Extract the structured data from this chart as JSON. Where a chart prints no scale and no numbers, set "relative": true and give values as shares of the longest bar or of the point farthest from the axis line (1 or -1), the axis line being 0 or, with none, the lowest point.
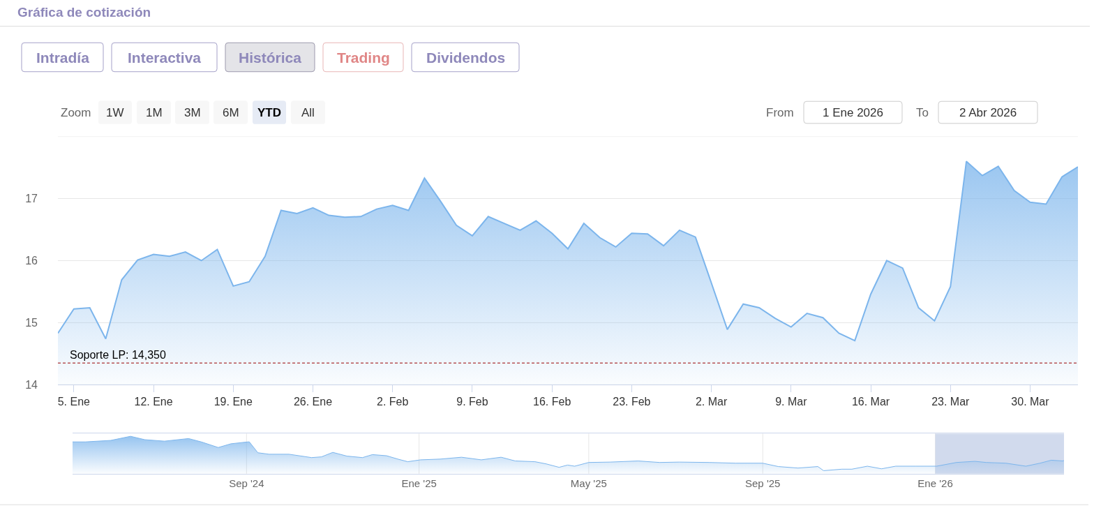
{
  "chart_data": [
    {
      "type": "area",
      "title": "Gráfica de cotización",
      "annotations": [
        "Intradía",
        "Interactiva",
        "Histórica",
        "Trading",
        "Dividendos",
        "Zoom",
        "1W",
        "1M",
        "3M",
        "6M",
        "YTD",
        "All",
        "From",
        "1 Ene 2026",
        "To",
        "2 Abr 2026"
      ],
      "categories": [
        null,
        "5. Ene",
        null,
        null,
        null,
        null,
        "12. Ene",
        null,
        null,
        null,
        null,
        "19. Ene",
        null,
        null,
        null,
        null,
        "26. Ene",
        null,
        null,
        null,
        null,
        "2. Feb",
        null,
        null,
        null,
        null,
        "9. Feb",
        null,
        null,
        null,
        null,
        "16. Feb",
        null,
        null,
        null,
        null,
        "23. Feb",
        null,
        null,
        null,
        null,
        "2. Mar",
        null,
        null,
        null,
        null,
        "9. Mar",
        null,
        null,
        null,
        null,
        "16. Mar",
        null,
        null,
        null,
        null,
        "23. Mar",
        null,
        null,
        null,
        null,
        "30. Mar",
        null,
        null,
        null
      ],
      "values": [
        14.83,
        15.22,
        15.24,
        14.74,
        15.69,
        16.01,
        16.1,
        16.07,
        16.14,
        16.0,
        16.18,
        15.59,
        15.66,
        16.07,
        16.81,
        16.76,
        16.85,
        16.73,
        16.7,
        16.71,
        16.83,
        16.89,
        16.81,
        17.33,
        16.96,
        16.57,
        16.4,
        16.71,
        16.6,
        16.49,
        16.64,
        16.44,
        16.19,
        16.6,
        16.37,
        16.22,
        16.44,
        16.43,
        16.24,
        16.49,
        16.38,
        15.64,
        14.89,
        15.3,
        15.24,
        15.07,
        14.93,
        15.15,
        15.08,
        14.83,
        14.71,
        15.46,
        16.0,
        15.88,
        15.24,
        15.03,
        15.58,
        17.6,
        17.37,
        17.52,
        17.13,
        16.94,
        16.91,
        17.35,
        17.51
      ],
      "color": "#7cb5ec",
      "ylim": [
        14,
        18
      ],
      "yticks": [
        14,
        15,
        16,
        17,
        {
          "value": 18,
          "label": null
        }
      ],
      "ref_lines": [
        {
          "axis": "y",
          "value": 14.35,
          "label": "Soporte LP: 14,350",
          "color": "#990000",
          "line_style": "dashed"
        }
      ],
      "grid": "y"
    },
    {
      "type": "area",
      "relative": true,
      "x": [
        "2024-05-01",
        "2024-05-10",
        "2024-05-28",
        "2024-06-11",
        "2024-06-21",
        "2024-07-05",
        "2024-07-22",
        "2024-07-31",
        "2024-08-12",
        "2024-08-21",
        "2024-09-02",
        "2024-09-03",
        "2024-09-09",
        "2024-09-17",
        "2024-10-01",
        "2024-10-17",
        "2024-10-24",
        "2024-11-01",
        "2024-11-11",
        "2024-11-22",
        "2024-11-29",
        "2024-12-09",
        "2024-12-17",
        "2024-12-24",
        "2025-01-02",
        "2025-01-16",
        "2025-01-31",
        "2025-02-14",
        "2025-02-28",
        "2025-03-10",
        "2025-03-24",
        "2025-04-01",
        "2025-04-10",
        "2025-04-16",
        "2025-04-21",
        "2025-05-01",
        "2025-05-16",
        "2025-06-05",
        "2025-06-20",
        "2025-07-04",
        "2025-07-25",
        "2025-08-13",
        "2025-09-01",
        "2025-09-12",
        "2025-09-26",
        "2025-10-10",
        "2025-10-14",
        "2025-10-27",
        "2025-11-03",
        "2025-11-14",
        "2025-11-24",
        "2025-12-04",
        "2025-12-18",
        "2026-01-02",
        "2026-01-16",
        "2026-01-29",
        "2026-02-06",
        "2026-02-20",
        "2026-03-06",
        "2026-03-16",
        "2026-03-24",
        "2026-04-01",
        "2026-04-02"
      ],
      "values": [
        0.85,
        0.85,
        0.89,
        1.0,
        0.91,
        0.87,
        0.94,
        0.85,
        0.7,
        0.8,
        0.85,
        0.85,
        0.56,
        0.52,
        0.52,
        0.43,
        0.45,
        0.57,
        0.47,
        0.43,
        0.51,
        0.48,
        0.39,
        0.32,
        0.37,
        0.39,
        0.44,
        0.37,
        0.44,
        0.34,
        0.32,
        0.26,
        0.17,
        0.23,
        0.2,
        0.3,
        0.31,
        0.34,
        0.3,
        0.31,
        0.3,
        0.28,
        0.28,
        0.19,
        0.15,
        0.19,
        0.08,
        0.12,
        0.12,
        0.2,
        0.13,
        0.2,
        0.2,
        0.2,
        0.3,
        0.33,
        0.3,
        0.28,
        0.2,
        0.28,
        0.36,
        0.34,
        0.35
      ],
      "color": "#7cb5ec",
      "xlim": [
        "2024-05-01",
        "2026-04-02"
      ],
      "xticks": [
        {
          "value": "2024-09-01",
          "label": "Sep '24"
        },
        {
          "value": "2025-01-01",
          "label": "Ene '25"
        },
        {
          "value": "2025-05-01",
          "label": "May '25"
        },
        {
          "value": "2025-09-01",
          "label": "Sep '25"
        },
        {
          "value": "2026-01-01",
          "label": "Ene '26"
        }
      ],
      "bands": [
        {
          "axis": "x",
          "from": "2026-01-01",
          "to": "2026-04-02",
          "color": "#d1daed"
        }
      ],
      "grid": "x",
      "tick_labels": "x"
    }
  ]
}
